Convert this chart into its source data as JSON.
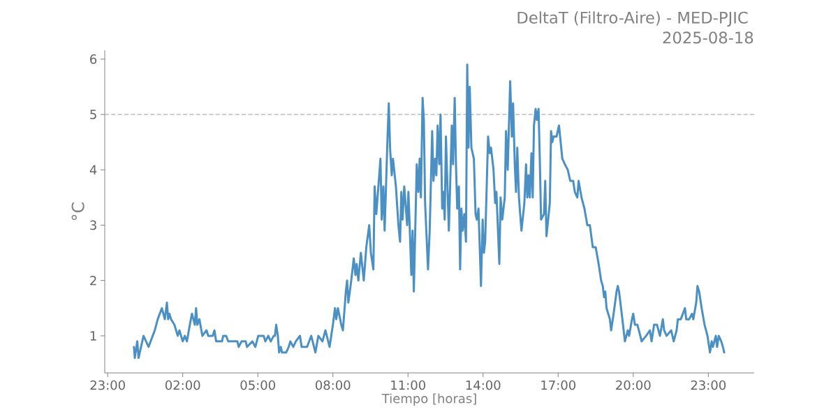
{
  "chart_data": {
    "type": "line",
    "title": "DeltaT (Filtro-Aire) - MED-PJIC",
    "subtitle": "2025-08-18",
    "xlabel": "Tiempo [horas]",
    "ylabel": "°C",
    "x": [
      "2025-08-18T00:03",
      "2025-08-18T00:05",
      "2025-08-18T00:11",
      "2025-08-18T00:14",
      "2025-08-18T00:23",
      "2025-08-18T00:26",
      "2025-08-18T00:38",
      "2025-08-18T00:43",
      "2025-08-18T00:53",
      "2025-08-18T01:00",
      "2025-08-18T01:10",
      "2025-08-18T01:17",
      "2025-08-18T01:22",
      "2025-08-18T01:25",
      "2025-08-18T01:28",
      "2025-08-18T01:32",
      "2025-08-18T01:40",
      "2025-08-18T01:48",
      "2025-08-18T01:52",
      "2025-08-18T02:00",
      "2025-08-18T02:05",
      "2025-08-18T02:10",
      "2025-08-18T02:17",
      "2025-08-18T02:22",
      "2025-08-18T02:29",
      "2025-08-18T02:32",
      "2025-08-18T02:35",
      "2025-08-18T02:40",
      "2025-08-18T02:47",
      "2025-08-18T02:57",
      "2025-08-18T03:01",
      "2025-08-18T03:12",
      "2025-08-18T03:16",
      "2025-08-18T03:20",
      "2025-08-18T03:34",
      "2025-08-18T03:37",
      "2025-08-18T03:44",
      "2025-08-18T03:49",
      "2025-08-18T04:11",
      "2025-08-18T04:14",
      "2025-08-18T04:21",
      "2025-08-18T04:31",
      "2025-08-18T04:34",
      "2025-08-18T04:47",
      "2025-08-18T04:54",
      "2025-08-18T05:01",
      "2025-08-18T05:14",
      "2025-08-18T05:18",
      "2025-08-18T05:25",
      "2025-08-18T05:31",
      "2025-08-18T05:38",
      "2025-08-18T05:41",
      "2025-08-18T05:44",
      "2025-08-18T05:48",
      "2025-08-18T05:51",
      "2025-08-18T05:55",
      "2025-08-18T05:58",
      "2025-08-18T06:08",
      "2025-08-18T06:14",
      "2025-08-18T06:18",
      "2025-08-18T06:25",
      "2025-08-18T06:31",
      "2025-08-18T06:41",
      "2025-08-18T06:45",
      "2025-08-18T06:58",
      "2025-08-18T07:08",
      "2025-08-18T07:18",
      "2025-08-18T07:25",
      "2025-08-18T07:35",
      "2025-08-18T07:42",
      "2025-08-18T07:52",
      "2025-08-18T08:00",
      "2025-08-18T08:05",
      "2025-08-18T08:08",
      "2025-08-18T08:12",
      "2025-08-18T08:20",
      "2025-08-18T08:24",
      "2025-08-18T08:31",
      "2025-08-18T08:34",
      "2025-08-18T08:37",
      "2025-08-18T08:44",
      "2025-08-18T08:50",
      "2025-08-18T08:54",
      "2025-08-18T08:57",
      "2025-08-18T09:01",
      "2025-08-18T09:07",
      "2025-08-18T09:14",
      "2025-08-18T09:20",
      "2025-08-18T09:27",
      "2025-08-18T09:31",
      "2025-08-18T09:37",
      "2025-08-18T09:40",
      "2025-08-18T09:44",
      "2025-08-18T09:54",
      "2025-08-18T09:57",
      "2025-08-18T10:01",
      "2025-08-18T10:04",
      "2025-08-18T10:11",
      "2025-08-18T10:14",
      "2025-08-18T10:17",
      "2025-08-18T10:21",
      "2025-08-18T10:24",
      "2025-08-18T10:31",
      "2025-08-18T10:37",
      "2025-08-18T10:41",
      "2025-08-18T10:44",
      "2025-08-18T10:47",
      "2025-08-18T10:51",
      "2025-08-18T10:58",
      "2025-08-18T11:01",
      "2025-08-18T11:04",
      "2025-08-18T11:08",
      "2025-08-18T11:11",
      "2025-08-18T11:14",
      "2025-08-18T11:21",
      "2025-08-18T11:25",
      "2025-08-18T11:28",
      "2025-08-18T11:31",
      "2025-08-18T11:35",
      "2025-08-18T11:38",
      "2025-08-18T11:41",
      "2025-08-18T11:48",
      "2025-08-18T11:52",
      "2025-08-18T11:58",
      "2025-08-18T12:01",
      "2025-08-18T12:05",
      "2025-08-18T12:08",
      "2025-08-18T12:11",
      "2025-08-18T12:15",
      "2025-08-18T12:18",
      "2025-08-18T12:22",
      "2025-08-18T12:25",
      "2025-08-18T12:28",
      "2025-08-18T12:31",
      "2025-08-18T12:35",
      "2025-08-18T12:38",
      "2025-08-18T12:45",
      "2025-08-18T12:48",
      "2025-08-18T12:52",
      "2025-08-18T12:55",
      "2025-08-18T12:58",
      "2025-08-18T13:02",
      "2025-08-18T13:05",
      "2025-08-18T13:08",
      "2025-08-18T13:11",
      "2025-08-18T13:15",
      "2025-08-18T13:19",
      "2025-08-18T13:22",
      "2025-08-18T13:25",
      "2025-08-18T13:28",
      "2025-08-18T13:32",
      "2025-08-18T13:38",
      "2025-08-18T13:42",
      "2025-08-18T13:45",
      "2025-08-18T13:49",
      "2025-08-18T13:55",
      "2025-08-18T13:59",
      "2025-08-18T14:02",
      "2025-08-18T14:05",
      "2025-08-18T14:12",
      "2025-08-18T14:16",
      "2025-08-18T14:19",
      "2025-08-18T14:25",
      "2025-08-18T14:29",
      "2025-08-18T14:32",
      "2025-08-18T14:39",
      "2025-08-18T14:42",
      "2025-08-18T14:46",
      "2025-08-18T14:52",
      "2025-08-18T14:55",
      "2025-08-18T14:59",
      "2025-08-18T15:05",
      "2025-08-18T15:09",
      "2025-08-18T15:12",
      "2025-08-18T15:16",
      "2025-08-18T15:19",
      "2025-08-18T15:22",
      "2025-08-18T15:26",
      "2025-08-18T15:32",
      "2025-08-18T15:39",
      "2025-08-18T15:43",
      "2025-08-18T15:46",
      "2025-08-18T15:49",
      "2025-08-18T15:52",
      "2025-08-18T15:56",
      "2025-08-18T15:59",
      "2025-08-18T16:02",
      "2025-08-18T16:06",
      "2025-08-18T16:09",
      "2025-08-18T16:13",
      "2025-08-18T16:16",
      "2025-08-18T16:19",
      "2025-08-18T16:26",
      "2025-08-18T16:29",
      "2025-08-18T16:32",
      "2025-08-18T16:40",
      "2025-08-18T16:43",
      "2025-08-18T16:46",
      "2025-08-18T16:49",
      "2025-08-18T16:56",
      "2025-08-18T17:02",
      "2025-08-18T17:10",
      "2025-08-18T17:16",
      "2025-08-18T17:23",
      "2025-08-18T17:29",
      "2025-08-18T17:36",
      "2025-08-18T17:40",
      "2025-08-18T17:46",
      "2025-08-18T17:49",
      "2025-08-18T17:56",
      "2025-08-18T18:03",
      "2025-08-18T18:10",
      "2025-08-18T18:16",
      "2025-08-18T18:23",
      "2025-08-18T18:30",
      "2025-08-18T18:37",
      "2025-08-18T18:43",
      "2025-08-18T18:47",
      "2025-08-18T18:50",
      "2025-08-18T18:53",
      "2025-08-18T18:56",
      "2025-08-18T19:04",
      "2025-08-18T19:07",
      "2025-08-18T19:13",
      "2025-08-18T19:20",
      "2025-08-18T19:23",
      "2025-08-18T19:26",
      "2025-08-18T19:34",
      "2025-08-18T19:40",
      "2025-08-18T19:47",
      "2025-08-18T19:50",
      "2025-08-18T19:57",
      "2025-08-18T20:00",
      "2025-08-18T20:04",
      "2025-08-18T20:10",
      "2025-08-18T20:17",
      "2025-08-18T20:20",
      "2025-08-18T20:31",
      "2025-08-18T20:40",
      "2025-08-18T20:44",
      "2025-08-18T20:50",
      "2025-08-18T20:57",
      "2025-08-18T21:04",
      "2025-08-18T21:11",
      "2025-08-18T21:14",
      "2025-08-18T21:20",
      "2025-08-18T21:31",
      "2025-08-18T21:37",
      "2025-08-18T21:44",
      "2025-08-18T21:47",
      "2025-08-18T21:54",
      "2025-08-18T22:04",
      "2025-08-18T22:07",
      "2025-08-18T22:14",
      "2025-08-18T22:21",
      "2025-08-18T22:24",
      "2025-08-18T22:31",
      "2025-08-18T22:34",
      "2025-08-18T22:38",
      "2025-08-18T22:44",
      "2025-08-18T22:51",
      "2025-08-18T22:58",
      "2025-08-18T23:04",
      "2025-08-18T23:08",
      "2025-08-18T23:11",
      "2025-08-18T23:18",
      "2025-08-18T23:21",
      "2025-08-18T23:25",
      "2025-08-18T23:31",
      "2025-08-18T23:35",
      "2025-08-18T23:38"
    ],
    "series": [
      {
        "color": "#4a90c4",
        "values": [
          0.8,
          0.6,
          0.9,
          0.6,
          0.9,
          1.0,
          0.8,
          0.9,
          1.1,
          1.3,
          1.5,
          1.3,
          1.6,
          1.3,
          1.4,
          1.3,
          1.2,
          1.0,
          1.1,
          0.9,
          1.0,
          0.9,
          1.2,
          1.4,
          1.2,
          1.5,
          1.2,
          1.3,
          1.0,
          1.1,
          1.0,
          1.0,
          1.1,
          0.9,
          0.9,
          1.0,
          1.0,
          0.9,
          0.9,
          0.8,
          0.9,
          0.9,
          0.8,
          0.9,
          0.8,
          1.0,
          1.0,
          0.9,
          1.0,
          0.9,
          1.0,
          1.0,
          1.2,
          1.0,
          0.7,
          0.8,
          0.7,
          0.7,
          0.8,
          0.9,
          0.8,
          0.9,
          1.0,
          0.8,
          0.8,
          1.0,
          0.7,
          1.0,
          0.9,
          1.1,
          0.8,
          1.2,
          1.5,
          1.3,
          1.5,
          1.2,
          1.1,
          1.8,
          2.0,
          1.6,
          2.0,
          2.4,
          2.1,
          2.3,
          2.0,
          2.5,
          2.0,
          2.6,
          3.0,
          2.5,
          2.2,
          3.7,
          3.2,
          4.2,
          3.1,
          3.7,
          2.9,
          4.6,
          5.2,
          4.4,
          3.9,
          4.2,
          3.7,
          3.0,
          2.7,
          3.6,
          3.1,
          3.7,
          3.0,
          3.6,
          3.0,
          2.1,
          2.9,
          1.8,
          4.1,
          3.6,
          4.2,
          3.5,
          5.3,
          4.9,
          3.4,
          2.2,
          2.9,
          4.7,
          3.8,
          4.2,
          3.9,
          4.8,
          4.1,
          5.0,
          3.3,
          3.6,
          3.1,
          4.6,
          3.6,
          2.9,
          4.8,
          4.1,
          5.3,
          4.1,
          3.3,
          3.7,
          2.2,
          3.3,
          2.9,
          3.2,
          2.7,
          5.9,
          4.4,
          5.5,
          4.4,
          4.2,
          3.2,
          3.1,
          3.3,
          1.9,
          3.1,
          2.5,
          2.7,
          4.6,
          4.3,
          4.4,
          4.0,
          3.4,
          3.6,
          2.3,
          3.5,
          3.1,
          3.5,
          4.7,
          4.0,
          5.6,
          4.6,
          5.2,
          4.1,
          3.6,
          4.4,
          3.5,
          2.9,
          3.4,
          4.1,
          3.5,
          3.9,
          3.5,
          4.3,
          3.5,
          4.8,
          5.1,
          4.9,
          5.1,
          4.2,
          3.1,
          3.2,
          3.8,
          2.8,
          3.4,
          4.7,
          4.5,
          4.6,
          4.6,
          4.8,
          4.2,
          4.1,
          4.0,
          3.8,
          3.8,
          3.6,
          3.5,
          3.8,
          3.5,
          3.3,
          3.0,
          3.0,
          2.6,
          2.6,
          2.3,
          2.0,
          1.9,
          1.7,
          1.8,
          1.5,
          1.3,
          1.1,
          1.4,
          1.8,
          1.9,
          1.8,
          1.3,
          0.9,
          1.1,
          1.0,
          1.3,
          1.4,
          1.2,
          1.2,
          1.0,
          0.9,
          1.0,
          1.1,
          0.9,
          1.2,
          1.2,
          1.0,
          1.3,
          1.1,
          1.0,
          1.1,
          0.9,
          1.1,
          1.3,
          1.3,
          1.5,
          1.3,
          1.3,
          1.4,
          1.3,
          1.6,
          1.9,
          1.8,
          1.5,
          1.2,
          1.0,
          0.7,
          0.9,
          0.8,
          1.0,
          0.8,
          1.0,
          0.9,
          0.8,
          0.7
        ]
      }
    ],
    "xlim": [
      "2025-08-17T22:53",
      "2025-08-19T00:50"
    ],
    "ylim": [
      0.33,
      6.16
    ],
    "xticks": [
      {
        "value": "2025-08-17T23:00",
        "label": "23:00"
      },
      {
        "value": "2025-08-18T02:00",
        "label": "02:00"
      },
      {
        "value": "2025-08-18T05:00",
        "label": "05:00"
      },
      {
        "value": "2025-08-18T08:00",
        "label": "08:00"
      },
      {
        "value": "2025-08-18T11:00",
        "label": "11:00"
      },
      {
        "value": "2025-08-18T14:00",
        "label": "14:00"
      },
      {
        "value": "2025-08-18T17:00",
        "label": "17:00"
      },
      {
        "value": "2025-08-18T20:00",
        "label": "20:00"
      },
      {
        "value": "2025-08-18T23:00",
        "label": "23:00"
      }
    ],
    "yticks": [
      1,
      2,
      3,
      4,
      5,
      6
    ],
    "ref_lines": [
      {
        "axis": "y",
        "value": 5,
        "color": "#b0b0b0",
        "line_style": "dashed"
      }
    ],
    "grid": false,
    "marker": "none",
    "line_style": "solid"
  }
}
